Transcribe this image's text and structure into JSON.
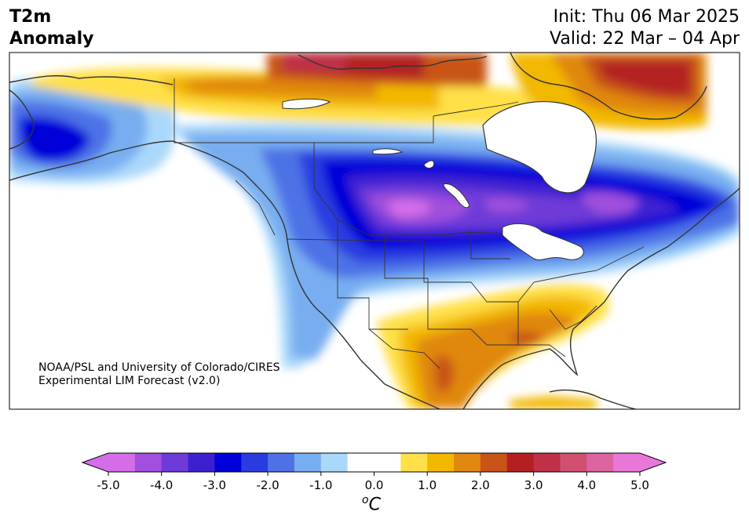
{
  "title": {
    "line1": "T2m",
    "line2": "Anomaly"
  },
  "dates": {
    "init": "Init: Thu 06 Mar 2025",
    "valid": "Valid: 22 Mar – 04 Apr"
  },
  "credit": {
    "line1": "NOAA/PSL and University of Colorado/CIRES",
    "line2": "Experimental LIM Forecast (v2.0)"
  },
  "colorbar": {
    "unit_super": "o",
    "unit_main": "C",
    "min": -5.0,
    "max": 5.0,
    "ticks": [
      "-5.0",
      "-4.0",
      "-3.0",
      "-2.0",
      "-1.0",
      "0.0",
      "1.0",
      "2.0",
      "3.0",
      "4.0",
      "5.0"
    ],
    "tick_values": [
      -5,
      -4,
      -3,
      -2,
      -1,
      0,
      1,
      2,
      3,
      4,
      5
    ],
    "levels": [
      -5,
      -4.5,
      -4,
      -3.5,
      -3,
      -2.5,
      -2,
      -1.5,
      -1,
      -0.5,
      0.5,
      1,
      1.5,
      2,
      2.5,
      3,
      3.5,
      4,
      4.5,
      5
    ],
    "colors": [
      "#d46ee8",
      "#a050dc",
      "#6e3ad8",
      "#3c20d0",
      "#0000d8",
      "#2a3ce0",
      "#4e72e6",
      "#78aef0",
      "#aad8fa",
      "#ffffff",
      "#ffe04a",
      "#f2b800",
      "#e08810",
      "#c85418",
      "#b42022",
      "#c03048",
      "#d05070",
      "#dc64a0",
      "#e878d8"
    ],
    "under_color": "#d46ee8",
    "over_color": "#e878d8"
  },
  "map_colors": {
    "ocean": "#ffffff",
    "land_neutral": "#ffffff",
    "border": "#333333"
  }
}
